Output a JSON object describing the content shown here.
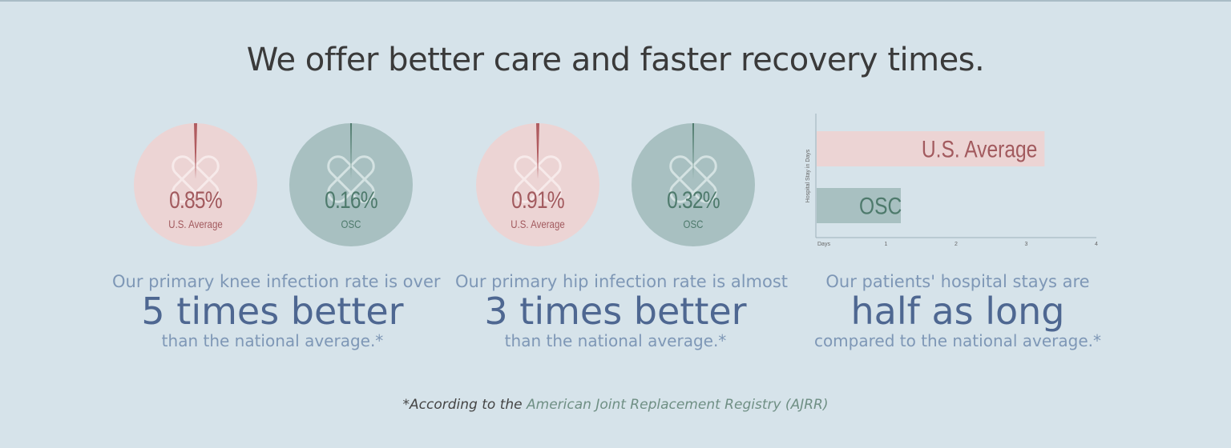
{
  "title": "We offer better care and faster recovery times.",
  "colors": {
    "background": "#d6e3ea",
    "us_average": "#ecd4d4",
    "osc": "#a8c0c1",
    "us_text": "#a25a5e",
    "osc_text": "#4e7a6c",
    "accent_text": "#4e6791"
  },
  "knee": {
    "us": {
      "value": "0.85%",
      "label": "U.S. Average"
    },
    "osc": {
      "value": "0.16%",
      "label": "OSC"
    },
    "caption_top": "Our primary knee infection rate is over",
    "caption_big": "5 times better",
    "caption_bottom": "than the national average.*"
  },
  "hip": {
    "us": {
      "value": "0.91%",
      "label": "U.S. Average"
    },
    "osc": {
      "value": "0.32%",
      "label": "OSC"
    },
    "caption_top": "Our primary hip infection rate is almost",
    "caption_big": "3 times better",
    "caption_bottom": "than the national average.*"
  },
  "stay": {
    "caption_top": "Our patients' hospital stays are",
    "caption_big": "half as long",
    "caption_bottom": "compared to the national average.*"
  },
  "chart_data": {
    "type": "bar",
    "orientation": "horizontal",
    "categories": [
      "U.S. Average",
      "OSC"
    ],
    "values": [
      3.25,
      1.2
    ],
    "xlabel": "Days",
    "ylabel": "Hospital Stay in Days",
    "xticks": [
      "Days",
      "1",
      "2",
      "3",
      "4"
    ],
    "xlim": [
      0,
      4
    ],
    "colors": [
      "#ecd4d4",
      "#a8c0c1"
    ],
    "label_colors": [
      "#a25a5e",
      "#4e7a6c"
    ]
  },
  "footnote": {
    "prefix": "*According to the",
    "source": "American Joint Replacement Registry (AJRR)"
  }
}
